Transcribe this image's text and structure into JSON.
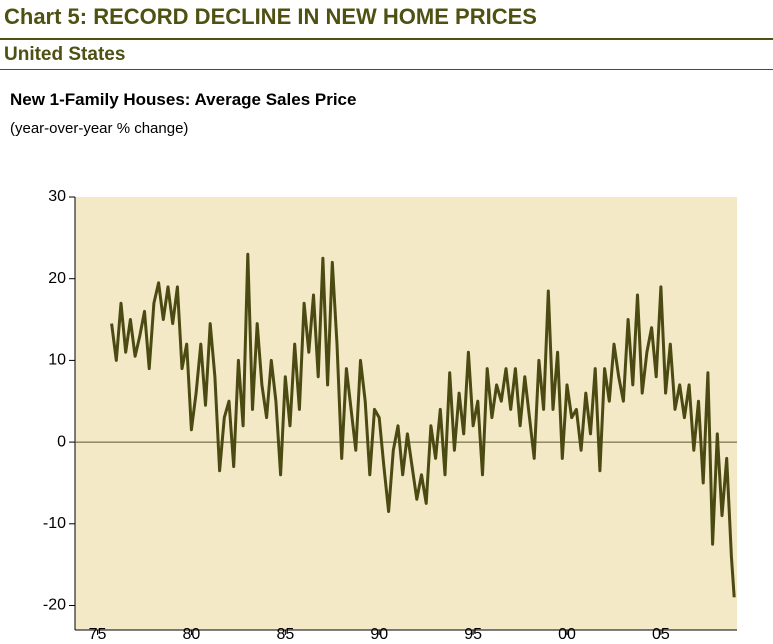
{
  "chart_data": {
    "type": "line",
    "title": "Chart 5: RECORD DECLINE IN NEW HOME PRICES",
    "subtitle": "United States",
    "series_title": "New 1-Family Houses: Average Sales Price",
    "y_label": "(year-over-year % change)",
    "xlim": [
      1973.8,
      2009.05
    ],
    "xticks": [
      {
        "value": 1975,
        "label": "75"
      },
      {
        "value": 1980,
        "label": "80"
      },
      {
        "value": 1985,
        "label": "85"
      },
      {
        "value": 1990,
        "label": "90"
      },
      {
        "value": 1995,
        "label": "95"
      },
      {
        "value": 2000,
        "label": "00"
      },
      {
        "value": 2005,
        "label": "05"
      }
    ],
    "ylim": [
      -23,
      30
    ],
    "yticks": [
      -20,
      -10,
      0,
      10,
      20,
      30
    ],
    "hline": 0,
    "background": "#f3e9c6",
    "x": [
      1975.75,
      1976,
      1976.25,
      1976.5,
      1976.75,
      1977,
      1977.25,
      1977.5,
      1977.75,
      1978,
      1978.25,
      1978.5,
      1978.75,
      1979,
      1979.25,
      1979.5,
      1979.75,
      1980,
      1980.25,
      1980.5,
      1980.75,
      1981,
      1981.25,
      1981.5,
      1981.75,
      1982,
      1982.25,
      1982.5,
      1982.75,
      1983,
      1983.25,
      1983.5,
      1983.75,
      1984,
      1984.25,
      1984.5,
      1984.75,
      1985,
      1985.25,
      1985.5,
      1985.75,
      1986,
      1986.25,
      1986.5,
      1986.75,
      1987,
      1987.25,
      1987.5,
      1987.75,
      1988,
      1988.25,
      1988.5,
      1988.75,
      1989,
      1989.25,
      1989.5,
      1989.75,
      1990,
      1990.25,
      1990.5,
      1990.75,
      1991,
      1991.25,
      1991.5,
      1991.75,
      1992,
      1992.25,
      1992.5,
      1992.75,
      1993,
      1993.25,
      1993.5,
      1993.75,
      1994,
      1994.25,
      1994.5,
      1994.75,
      1995,
      1995.25,
      1995.5,
      1995.75,
      1996,
      1996.25,
      1996.5,
      1996.75,
      1997,
      1997.25,
      1997.5,
      1997.75,
      1998,
      1998.25,
      1998.5,
      1998.75,
      1999,
      1999.25,
      1999.5,
      1999.75,
      2000,
      2000.25,
      2000.5,
      2000.75,
      2001,
      2001.25,
      2001.5,
      2001.75,
      2002,
      2002.25,
      2002.5,
      2002.75,
      2003,
      2003.25,
      2003.5,
      2003.75,
      2004,
      2004.25,
      2004.5,
      2004.75,
      2005,
      2005.25,
      2005.5,
      2005.75,
      2006,
      2006.25,
      2006.5,
      2006.75,
      2007,
      2007.25,
      2007.5,
      2007.75,
      2008,
      2008.25,
      2008.5,
      2008.75,
      2008.9
    ],
    "series": [
      {
        "color": "#4b4a12",
        "values": [
          14.5,
          10,
          17,
          11,
          15,
          10.5,
          13,
          16,
          9,
          17,
          19.5,
          15,
          19,
          14.5,
          19,
          9,
          12,
          1.5,
          6,
          12,
          4.5,
          14.5,
          8,
          -3.5,
          3,
          5,
          -3,
          10,
          2,
          23,
          4,
          14.5,
          7,
          3,
          10,
          5,
          -4,
          8,
          2,
          12,
          4,
          17,
          11,
          18,
          8,
          22.5,
          7,
          22,
          12,
          -2,
          9,
          4,
          -1,
          10,
          5,
          -4,
          4,
          3,
          -3,
          -8.5,
          -1,
          2,
          -4,
          1,
          -3,
          -7,
          -4,
          -7.5,
          2,
          -2,
          4,
          -4,
          8.5,
          -1,
          6,
          1,
          11,
          2,
          5,
          -4,
          9,
          3,
          7,
          5,
          9,
          4,
          9,
          2,
          8,
          3,
          -2,
          10,
          4,
          18.5,
          4,
          11,
          -2,
          7,
          3,
          4,
          -1,
          6,
          1,
          9,
          -3.5,
          9,
          5,
          12,
          8,
          5,
          15,
          7,
          18,
          6,
          11,
          14,
          8,
          19,
          6,
          12,
          4,
          7,
          3,
          7,
          -1,
          5,
          -5,
          8.5,
          -12.5,
          1,
          -9,
          -2,
          -14,
          -19
        ]
      }
    ]
  }
}
